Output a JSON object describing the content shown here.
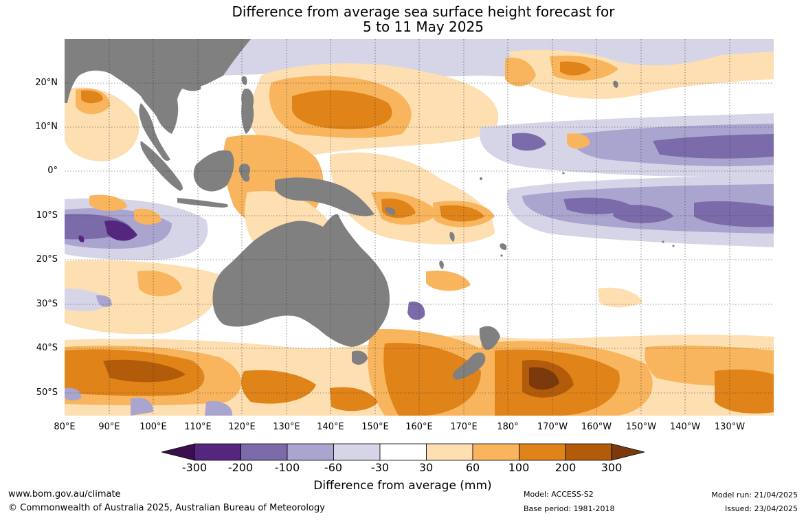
{
  "title": {
    "line1": "Difference from average sea surface height forecast for",
    "line2": "5 to 11 May 2025"
  },
  "map": {
    "latitude_labels": [
      "20°N",
      "10°N",
      "0°",
      "10°S",
      "20°S",
      "30°S",
      "40°S",
      "50°S"
    ],
    "longitude_labels": [
      "80°E",
      "90°E",
      "100°E",
      "110°E",
      "120°E",
      "130°E",
      "140°E",
      "150°E",
      "160°E",
      "170°E",
      "180°",
      "170°W",
      "160°W",
      "150°W",
      "140°W",
      "130°W"
    ],
    "land_color": "#808080",
    "grid_style": "dotted"
  },
  "colorbar": {
    "title": "Difference from average (mm)",
    "ticks": [
      "-300",
      "-200",
      "-100",
      "-60",
      "-30",
      "30",
      "60",
      "100",
      "200",
      "300"
    ],
    "colors": [
      "#3b0f4d",
      "#55267e",
      "#7b6baa",
      "#aaa5cf",
      "#d6d5e8",
      "#ffffff",
      "#fddfb2",
      "#f8b55e",
      "#e08419",
      "#b25c0b",
      "#7a3a0b"
    ]
  },
  "footer": {
    "website": "www.bom.gov.au/climate",
    "copyright": "© Commonwealth of Australia 2025, Australian Bureau of Meteorology",
    "model": "Model: ACCESS-S2",
    "base_period": "Base period: 1981-2018",
    "model_run": "Model run: 21/04/2025",
    "issued": "Issued: 23/04/2025"
  }
}
